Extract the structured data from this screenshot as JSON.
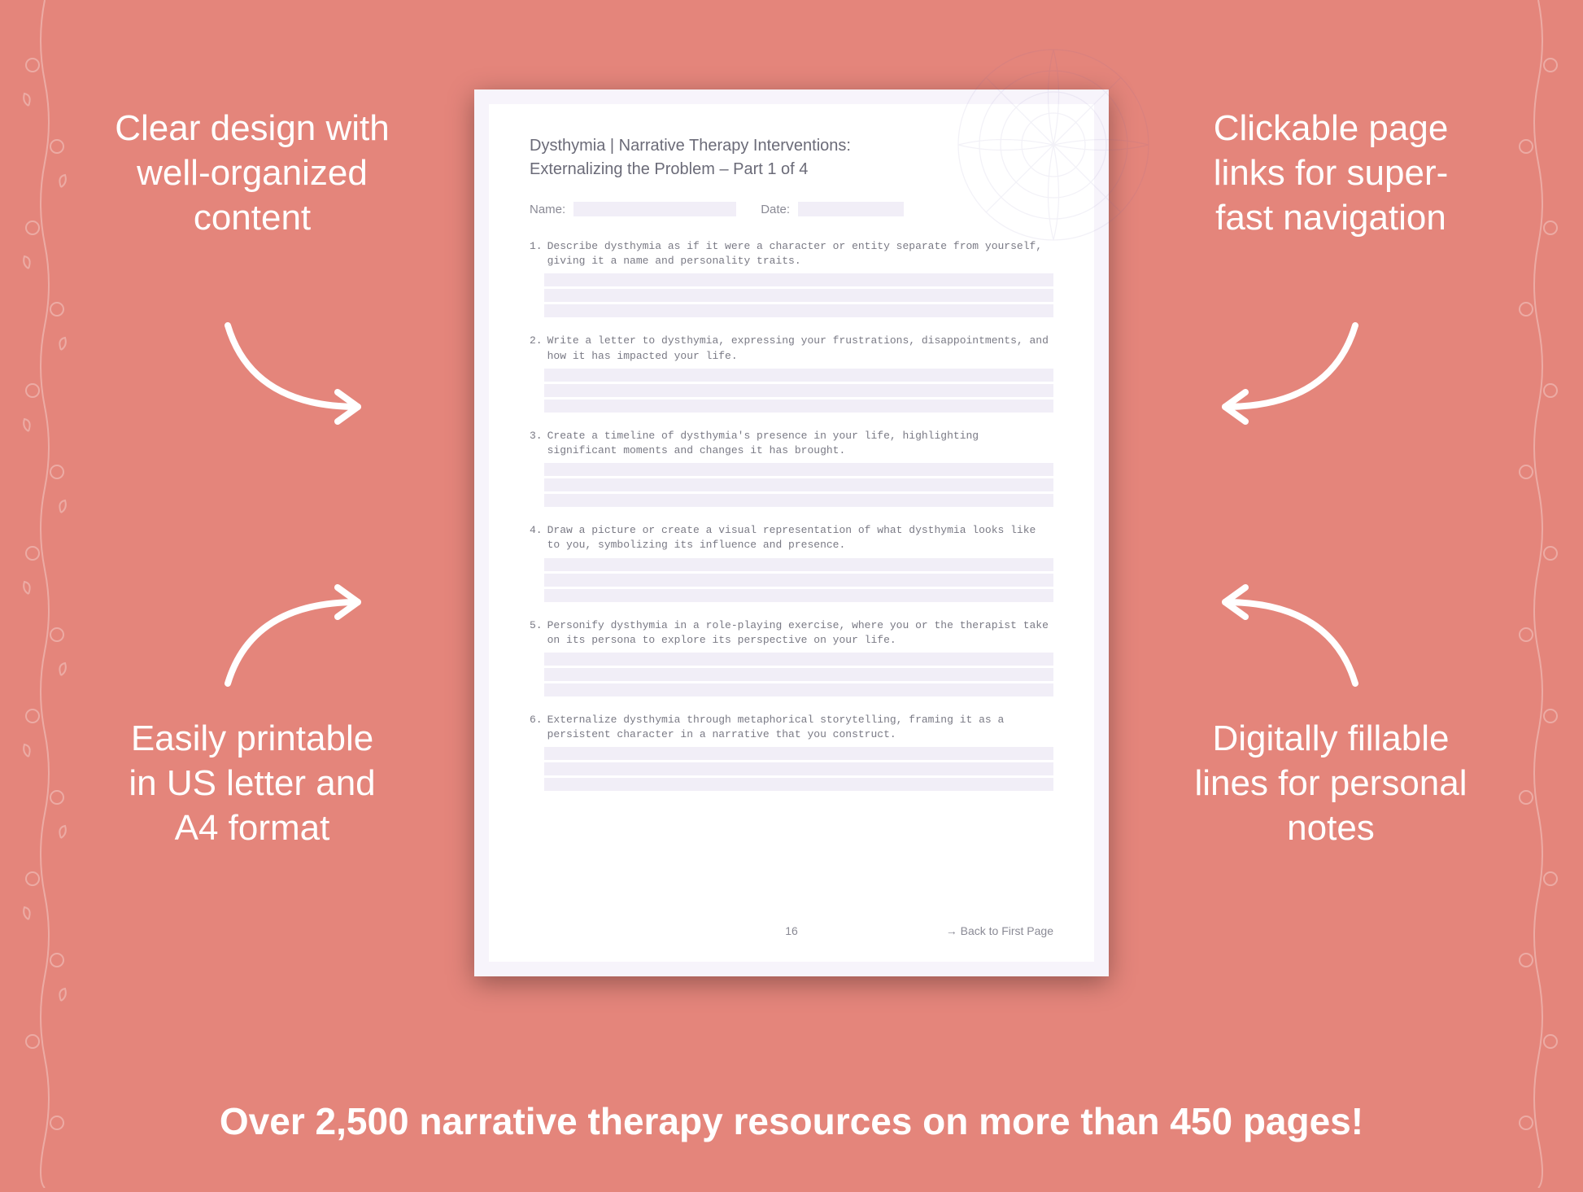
{
  "colors": {
    "background": "#e4857b",
    "callout_text": "#ffffff",
    "page_outer": "#f7f4fb",
    "page_inner": "#ffffff",
    "doc_text": "#6b6b78",
    "doc_muted": "#8a8a95",
    "fill_line": "#f1eef7",
    "mandala": "#b9b3d4"
  },
  "callouts": {
    "top_left": "Clear design with well-organized content",
    "top_right": "Clickable page links for super-fast navigation",
    "bottom_left": "Easily printable in US letter and A4 format",
    "bottom_right": "Digitally fillable lines for personal notes"
  },
  "document": {
    "title_line1": "Dysthymia | Narrative Therapy Interventions:",
    "title_line2": "Externalizing the Problem – Part 1 of 4",
    "name_label": "Name:",
    "date_label": "Date:",
    "questions": [
      {
        "num": "1.",
        "text": "Describe dysthymia as if it were a character or entity separate from yourself, giving it a name and personality traits."
      },
      {
        "num": "2.",
        "text": "Write a letter to dysthymia, expressing your frustrations, disappointments, and how it has impacted your life."
      },
      {
        "num": "3.",
        "text": "Create a timeline of dysthymia's presence in your life, highlighting significant moments and changes it has brought."
      },
      {
        "num": "4.",
        "text": "Draw a picture or create a visual representation of what dysthymia looks like to you, symbolizing its influence and presence."
      },
      {
        "num": "5.",
        "text": "Personify dysthymia in a role-playing exercise, where you or the therapist take on its persona to explore its perspective on your life."
      },
      {
        "num": "6.",
        "text": "Externalize dysthymia through metaphorical storytelling, framing it as a persistent character in a narrative that you construct."
      }
    ],
    "page_number": "16",
    "back_link": "→ Back to First Page"
  },
  "bottom_banner": "Over 2,500 narrative therapy resources on more than 450 pages!"
}
